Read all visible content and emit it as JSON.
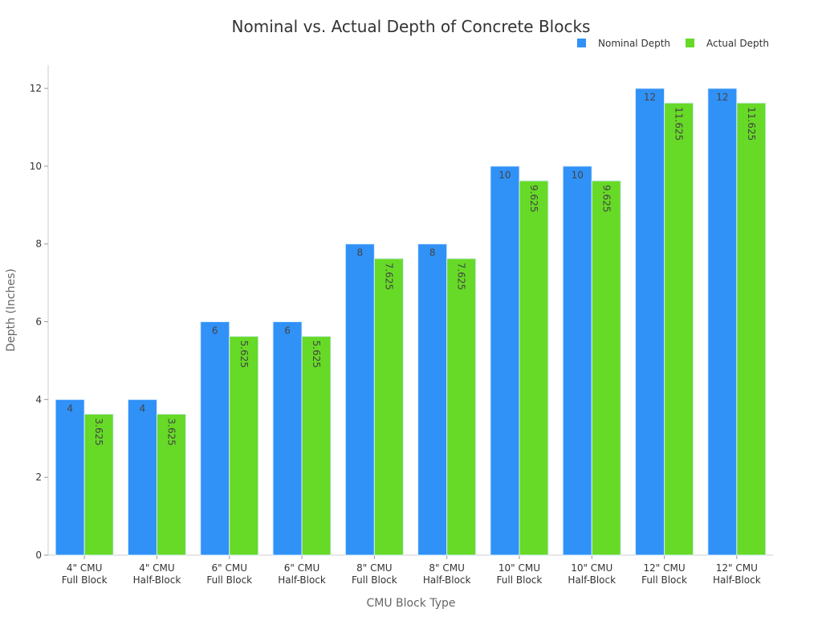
{
  "chart_data": {
    "type": "bar",
    "title": "Nominal vs. Actual Depth of Concrete Blocks",
    "xlabel": "CMU Block Type",
    "ylabel": "Depth (Inches)",
    "ylim": [
      0,
      12.6
    ],
    "yticks": [
      0,
      2,
      4,
      6,
      8,
      10,
      12
    ],
    "grid": false,
    "legend_position": "top-right",
    "categories": [
      [
        "4\" CMU",
        "Full Block"
      ],
      [
        "4\" CMU",
        "Half-Block"
      ],
      [
        "6\" CMU",
        "Full Block"
      ],
      [
        "6\" CMU",
        "Half-Block"
      ],
      [
        "8\" CMU",
        "Full Block"
      ],
      [
        "8\" CMU",
        "Half-Block"
      ],
      [
        "10\" CMU",
        "Full Block"
      ],
      [
        "10\" CMU",
        "Half-Block"
      ],
      [
        "12\" CMU",
        "Full Block"
      ],
      [
        "12\" CMU",
        "Half-Block"
      ]
    ],
    "series": [
      {
        "name": "Nominal Depth",
        "color": "#3091F7",
        "values": [
          4,
          4,
          6,
          6,
          8,
          8,
          10,
          10,
          12,
          12
        ]
      },
      {
        "name": "Actual Depth",
        "color": "#66DA26",
        "values": [
          3.625,
          3.625,
          5.625,
          5.625,
          7.625,
          7.625,
          9.625,
          9.625,
          11.625,
          11.625
        ]
      }
    ]
  }
}
